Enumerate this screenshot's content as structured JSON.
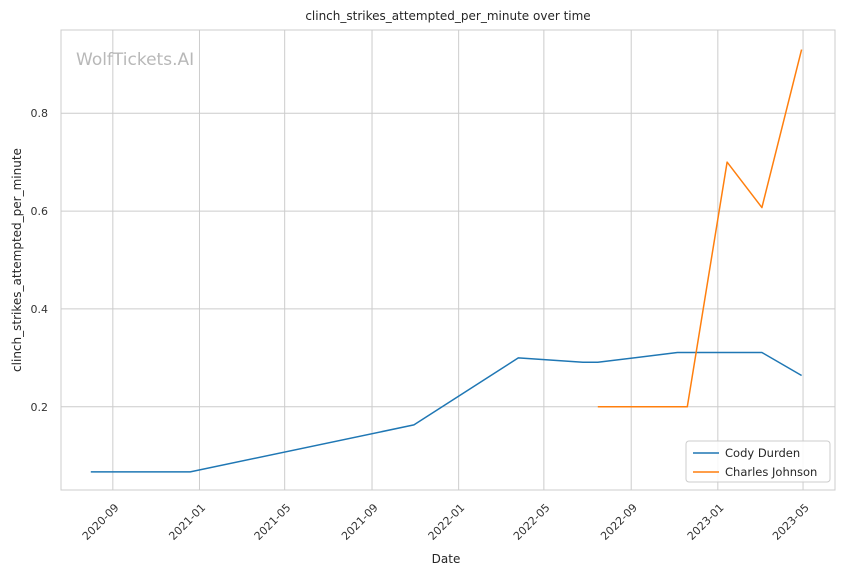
{
  "chart_data": {
    "type": "line",
    "title": "clinch_strikes_attempted_per_minute over time",
    "xlabel": "Date",
    "ylabel": "clinch_strikes_attempted_per_minute",
    "watermark": "WolfTickets.AI",
    "x_ticks": [
      "2020-09",
      "2021-01",
      "2021-05",
      "2021-09",
      "2022-01",
      "2022-05",
      "2022-09",
      "2023-01",
      "2023-05"
    ],
    "y_ticks": [
      "0.2",
      "0.4",
      "0.6",
      "0.8"
    ],
    "xlim": [
      "2020-06-20",
      "2023-06-15"
    ],
    "ylim": [
      0.03,
      0.97
    ],
    "grid": true,
    "legend_position": "lower-right",
    "series": [
      {
        "name": "Cody Durden",
        "color": "#1f77b4",
        "points": [
          {
            "x": "2020-08-01",
            "y": 0.067
          },
          {
            "x": "2020-12-19",
            "y": 0.067
          },
          {
            "x": "2021-10-30",
            "y": 0.163
          },
          {
            "x": "2022-03-26",
            "y": 0.3
          },
          {
            "x": "2022-06-25",
            "y": 0.291
          },
          {
            "x": "2022-07-16",
            "y": 0.291
          },
          {
            "x": "2022-11-05",
            "y": 0.311
          },
          {
            "x": "2023-03-04",
            "y": 0.311
          },
          {
            "x": "2023-04-29",
            "y": 0.264
          }
        ]
      },
      {
        "name": "Charles Johnson",
        "color": "#ff7f0e",
        "points": [
          {
            "x": "2022-07-16",
            "y": 0.2
          },
          {
            "x": "2022-11-19",
            "y": 0.2
          },
          {
            "x": "2023-01-14",
            "y": 0.7
          },
          {
            "x": "2023-03-04",
            "y": 0.607
          },
          {
            "x": "2023-04-29",
            "y": 0.93
          }
        ]
      }
    ]
  }
}
